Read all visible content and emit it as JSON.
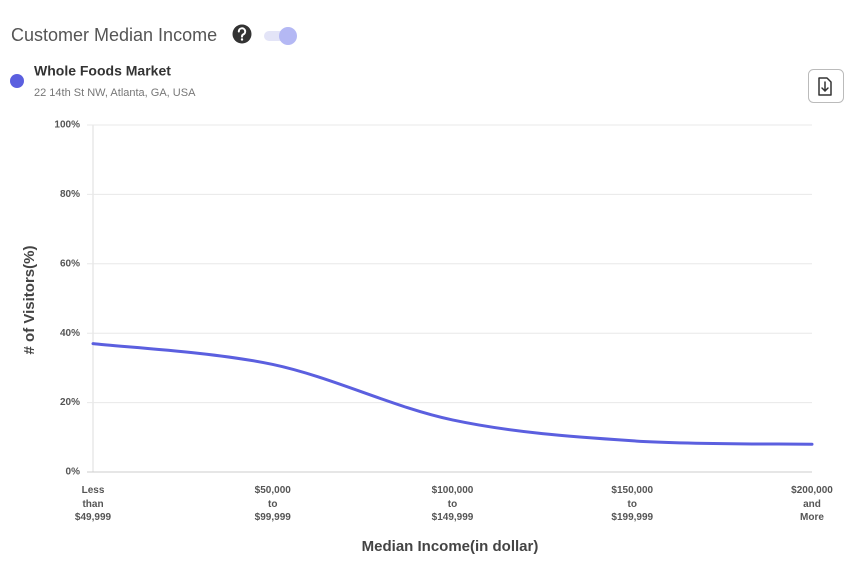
{
  "header": {
    "title": "Customer Median Income",
    "address": "22 14th St NW, Atlanta, GA, USA"
  },
  "chart_data": {
    "type": "line",
    "x_label": "Median Income(in dollar)",
    "y_label": "# of Visitors(%)",
    "categories": [
      "Less than $49,999",
      "$50,000 to $99,999",
      "$100,000 to $149,999",
      "$150,000 to $199,999",
      "$200,000 and More"
    ],
    "series": [
      {
        "name": "Whole Foods Market",
        "color": "#5b5fdf",
        "values": [
          37,
          31,
          15,
          9,
          8
        ]
      }
    ],
    "ylim": [
      0,
      100
    ],
    "yticks": [
      {
        "value": 0,
        "label": "0%"
      },
      {
        "value": 20,
        "label": "20%"
      },
      {
        "value": 40,
        "label": "40%"
      },
      {
        "value": 60,
        "label": "60%"
      },
      {
        "value": 80,
        "label": "80%"
      },
      {
        "value": 100,
        "label": "100%"
      }
    ],
    "grid": true
  }
}
